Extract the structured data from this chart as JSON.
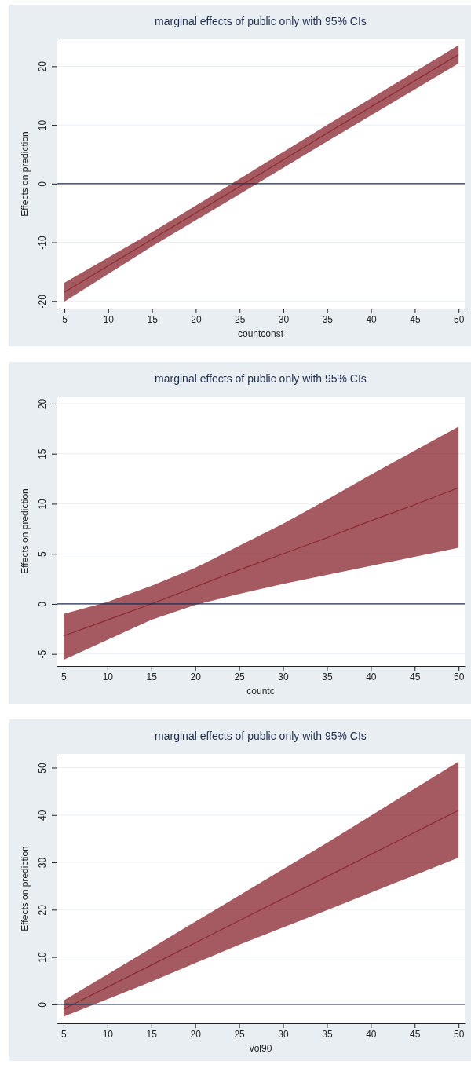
{
  "chart_data": [
    {
      "type": "line",
      "title": "marginal effects of public only with 95% CIs",
      "xlabel": "countconst",
      "ylabel": "Effects on prediction",
      "x": [
        5,
        15,
        25,
        35,
        50
      ],
      "xlim": [
        4.1,
        50.7
      ],
      "ylim": [
        -21.3,
        24.6
      ],
      "xticks": [
        5,
        10,
        15,
        20,
        25,
        30,
        35,
        40,
        45,
        50
      ],
      "yticks": [
        -20,
        -10,
        0,
        10,
        20
      ],
      "grid": "y",
      "ref_lines": [
        {
          "axis": "y",
          "value": 0,
          "color": "#1f2d4f"
        }
      ],
      "series": [
        {
          "color": "#8c2a33",
          "values": [
            -18.5,
            -9.5,
            -0.5,
            8.6,
            22
          ],
          "lower": [
            -20.1,
            -10.7,
            -1.8,
            7.2,
            20.5
          ],
          "upper": [
            -16.9,
            -8.3,
            0.8,
            10,
            23.6
          ]
        }
      ]
    },
    {
      "type": "line",
      "title": "marginal effects of public only with 95% CIs",
      "xlabel": "countc",
      "ylabel": "Effects on prediction",
      "x": [
        5,
        10,
        15,
        20,
        25,
        30,
        35,
        40,
        45,
        50
      ],
      "xlim": [
        4.2,
        50.7
      ],
      "ylim": [
        -6.2,
        20.7
      ],
      "xticks": [
        5,
        10,
        15,
        20,
        25,
        30,
        35,
        40,
        45,
        50
      ],
      "yticks": [
        -5,
        0,
        5,
        10,
        15,
        20
      ],
      "grid": "y",
      "ref_lines": [
        {
          "axis": "y",
          "value": 0,
          "color": "#1f2d4f"
        }
      ],
      "series": [
        {
          "color": "#8c2a33",
          "values": [
            -3.2,
            -1.6,
            0,
            1.7,
            3.4,
            5,
            6.6,
            8.3,
            9.9,
            11.6
          ],
          "lower": [
            -5.6,
            -3.6,
            -1.6,
            -0.1,
            1,
            2,
            2.9,
            3.8,
            4.7,
            5.6
          ],
          "upper": [
            -1,
            0.2,
            1.8,
            3.6,
            5.8,
            8,
            10.4,
            12.9,
            15.3,
            17.7
          ]
        }
      ]
    },
    {
      "type": "line",
      "title": "marginal effects of public only with 95% CIs",
      "xlabel": "vol90",
      "ylabel": "Effects on prediction",
      "x": [
        5,
        15,
        25,
        35,
        50
      ],
      "xlim": [
        4.2,
        50.7
      ],
      "ylim": [
        -4,
        52.9
      ],
      "xticks": [
        5,
        10,
        15,
        20,
        25,
        30,
        35,
        40,
        45,
        50
      ],
      "yticks": [
        0,
        10,
        20,
        30,
        40,
        50
      ],
      "grid": "y",
      "ref_lines": [
        {
          "axis": "y",
          "value": 0,
          "color": "#1f2d4f"
        }
      ],
      "series": [
        {
          "color": "#8c2a33",
          "values": [
            -1,
            8.3,
            17.7,
            27,
            41
          ],
          "lower": [
            -2.6,
            4.8,
            12.6,
            19.9,
            31
          ],
          "upper": [
            0.8,
            11.9,
            23,
            34.1,
            51.3
          ]
        }
      ]
    }
  ]
}
